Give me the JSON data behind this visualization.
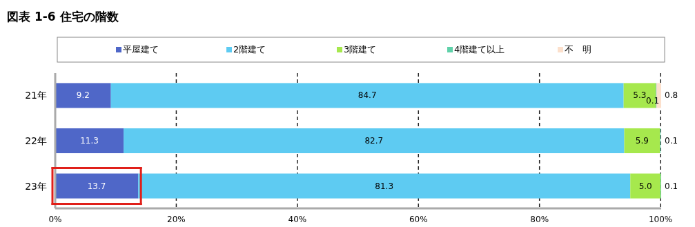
{
  "chart_data": {
    "type": "bar",
    "orientation": "horizontal",
    "stacked": true,
    "title": "図表 1-6 住宅の階数",
    "categories": [
      "21年",
      "22年",
      "23年"
    ],
    "series": [
      {
        "name": "平屋建て",
        "color": "#4f67c8",
        "values": [
          9.2,
          11.3,
          13.7
        ],
        "value_labels": [
          "9.2",
          "11.3",
          "13.7"
        ]
      },
      {
        "name": "2階建て",
        "color": "#5ecbf2",
        "values": [
          84.7,
          82.7,
          81.3
        ],
        "value_labels": [
          "84.7",
          "82.7",
          "81.3"
        ]
      },
      {
        "name": "3階建て",
        "color": "#a6e84d",
        "values": [
          5.3,
          5.9,
          5.0
        ],
        "value_labels": [
          "5.3",
          "5.9",
          "5.0"
        ]
      },
      {
        "name": "4階建て以上",
        "color": "#5fd1a9",
        "values": [
          0.1,
          0.1,
          0.1
        ],
        "value_labels": [
          "0.1",
          "0.1",
          "0.1"
        ]
      },
      {
        "name": "不　明",
        "color": "#fce0cc",
        "values": [
          0.8,
          null,
          null
        ],
        "value_labels": [
          "0.8",
          null,
          null
        ]
      }
    ],
    "xlim": [
      0,
      100.1
    ],
    "xticks": [
      {
        "value": 0,
        "label": "0%"
      },
      {
        "value": 20,
        "label": "20%"
      },
      {
        "value": 40,
        "label": "40%"
      },
      {
        "value": 60,
        "label": "60%"
      },
      {
        "value": 80,
        "label": "80%"
      },
      {
        "value": 100,
        "label": "100%"
      }
    ],
    "grid": "x",
    "legend": "top"
  }
}
